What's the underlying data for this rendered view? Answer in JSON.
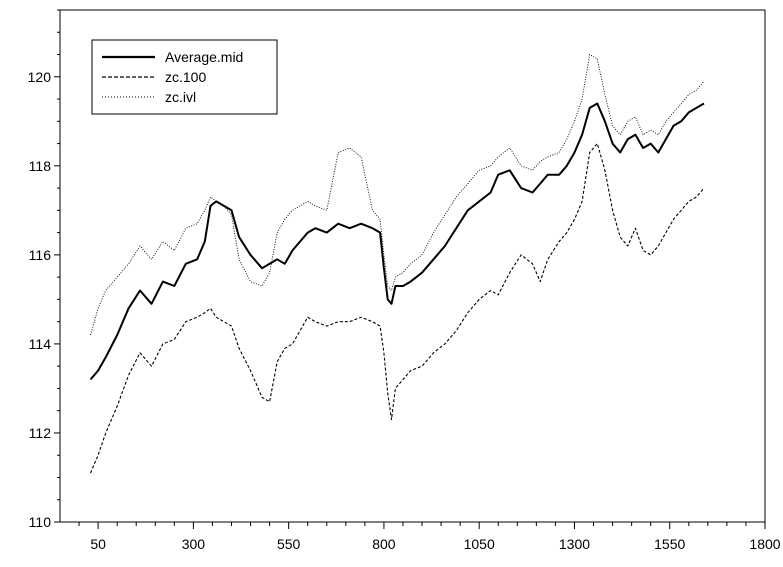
{
  "chart_data": {
    "type": "line",
    "title": "",
    "xlabel": "",
    "ylabel": "",
    "xlim": [
      -50,
      1800
    ],
    "ylim": [
      110,
      121.5
    ],
    "x_major_ticks": [
      50,
      300,
      550,
      800,
      1050,
      1300,
      1550,
      1800
    ],
    "x_minor_tick_step": 50,
    "y_major_ticks": [
      110,
      112,
      114,
      116,
      118,
      120
    ],
    "y_minor_tick_step": 0.5,
    "grid": false,
    "legend": {
      "placement": "top-left",
      "entries": [
        "Average.mid",
        "zc.100",
        "zc.ivl"
      ]
    },
    "series": [
      {
        "name": "Average.mid",
        "line_style": "solid",
        "color": "#000000",
        "x": [
          30,
          50,
          70,
          100,
          130,
          160,
          190,
          220,
          250,
          280,
          310,
          330,
          345,
          360,
          380,
          400,
          420,
          450,
          480,
          500,
          520,
          540,
          560,
          580,
          600,
          620,
          650,
          680,
          710,
          740,
          770,
          790,
          800,
          810,
          820,
          830,
          850,
          870,
          900,
          930,
          960,
          990,
          1020,
          1050,
          1080,
          1100,
          1130,
          1160,
          1190,
          1210,
          1230,
          1260,
          1280,
          1300,
          1320,
          1340,
          1360,
          1380,
          1400,
          1420,
          1440,
          1460,
          1480,
          1500,
          1520,
          1540,
          1560,
          1580,
          1600,
          1620,
          1640
        ],
        "values": [
          113.2,
          113.4,
          113.7,
          114.2,
          114.8,
          115.2,
          114.9,
          115.4,
          115.3,
          115.8,
          115.9,
          116.3,
          117.1,
          117.2,
          117.1,
          117.0,
          116.4,
          116.0,
          115.7,
          115.8,
          115.9,
          115.8,
          116.1,
          116.3,
          116.5,
          116.6,
          116.5,
          116.7,
          116.6,
          116.7,
          116.6,
          116.5,
          115.7,
          115.0,
          114.9,
          115.3,
          115.3,
          115.4,
          115.6,
          115.9,
          116.2,
          116.6,
          117.0,
          117.2,
          117.4,
          117.8,
          117.9,
          117.5,
          117.4,
          117.6,
          117.8,
          117.8,
          118.0,
          118.3,
          118.7,
          119.3,
          119.4,
          119.0,
          118.5,
          118.3,
          118.6,
          118.7,
          118.4,
          118.5,
          118.3,
          118.6,
          118.9,
          119.0,
          119.2,
          119.3,
          119.4
        ]
      },
      {
        "name": "zc.100",
        "line_style": "dashed",
        "color": "#000000",
        "x": [
          30,
          50,
          70,
          100,
          130,
          160,
          190,
          220,
          250,
          280,
          310,
          330,
          345,
          360,
          380,
          400,
          420,
          450,
          480,
          500,
          520,
          540,
          560,
          580,
          600,
          620,
          650,
          680,
          710,
          740,
          770,
          790,
          800,
          810,
          820,
          830,
          850,
          870,
          900,
          930,
          960,
          990,
          1020,
          1050,
          1080,
          1100,
          1130,
          1160,
          1190,
          1210,
          1230,
          1260,
          1280,
          1300,
          1320,
          1340,
          1360,
          1380,
          1400,
          1420,
          1440,
          1460,
          1480,
          1500,
          1520,
          1540,
          1560,
          1580,
          1600,
          1620,
          1640
        ],
        "values": [
          111.1,
          111.5,
          112.0,
          112.6,
          113.3,
          113.8,
          113.5,
          114.0,
          114.1,
          114.5,
          114.6,
          114.7,
          114.8,
          114.6,
          114.5,
          114.4,
          113.9,
          113.4,
          112.8,
          112.7,
          113.6,
          113.9,
          114.0,
          114.3,
          114.6,
          114.5,
          114.4,
          114.5,
          114.5,
          114.6,
          114.5,
          114.4,
          113.8,
          112.9,
          112.3,
          113.0,
          113.2,
          113.4,
          113.5,
          113.8,
          114.0,
          114.3,
          114.7,
          115.0,
          115.2,
          115.1,
          115.6,
          116.0,
          115.8,
          115.4,
          115.9,
          116.3,
          116.5,
          116.8,
          117.2,
          118.3,
          118.5,
          117.9,
          117.0,
          116.4,
          116.2,
          116.6,
          116.1,
          116.0,
          116.2,
          116.5,
          116.8,
          117.0,
          117.2,
          117.3,
          117.5
        ]
      },
      {
        "name": "zc.ivl",
        "line_style": "dotted",
        "color": "#000000",
        "x": [
          30,
          50,
          70,
          100,
          130,
          160,
          190,
          220,
          250,
          280,
          310,
          330,
          345,
          360,
          380,
          400,
          420,
          450,
          480,
          500,
          520,
          540,
          560,
          580,
          600,
          620,
          650,
          680,
          710,
          740,
          770,
          790,
          800,
          810,
          820,
          830,
          850,
          870,
          900,
          930,
          960,
          990,
          1020,
          1050,
          1080,
          1100,
          1130,
          1160,
          1190,
          1210,
          1230,
          1260,
          1280,
          1300,
          1320,
          1340,
          1360,
          1380,
          1400,
          1420,
          1440,
          1460,
          1480,
          1500,
          1520,
          1540,
          1560,
          1580,
          1600,
          1620,
          1640
        ],
        "values": [
          114.2,
          114.8,
          115.2,
          115.5,
          115.8,
          116.2,
          115.9,
          116.3,
          116.1,
          116.6,
          116.7,
          117.0,
          117.3,
          117.2,
          117.1,
          116.9,
          115.9,
          115.4,
          115.3,
          115.6,
          116.5,
          116.8,
          117.0,
          117.1,
          117.2,
          117.1,
          117.0,
          118.3,
          118.4,
          118.2,
          117.0,
          116.8,
          116.0,
          115.3,
          115.2,
          115.5,
          115.6,
          115.8,
          116.0,
          116.5,
          116.9,
          117.3,
          117.6,
          117.9,
          118.0,
          118.2,
          118.4,
          118.0,
          117.9,
          118.1,
          118.2,
          118.3,
          118.6,
          119.0,
          119.5,
          120.5,
          120.4,
          119.6,
          118.9,
          118.7,
          119.0,
          119.1,
          118.7,
          118.8,
          118.7,
          119.0,
          119.2,
          119.4,
          119.6,
          119.7,
          119.9
        ]
      }
    ]
  }
}
